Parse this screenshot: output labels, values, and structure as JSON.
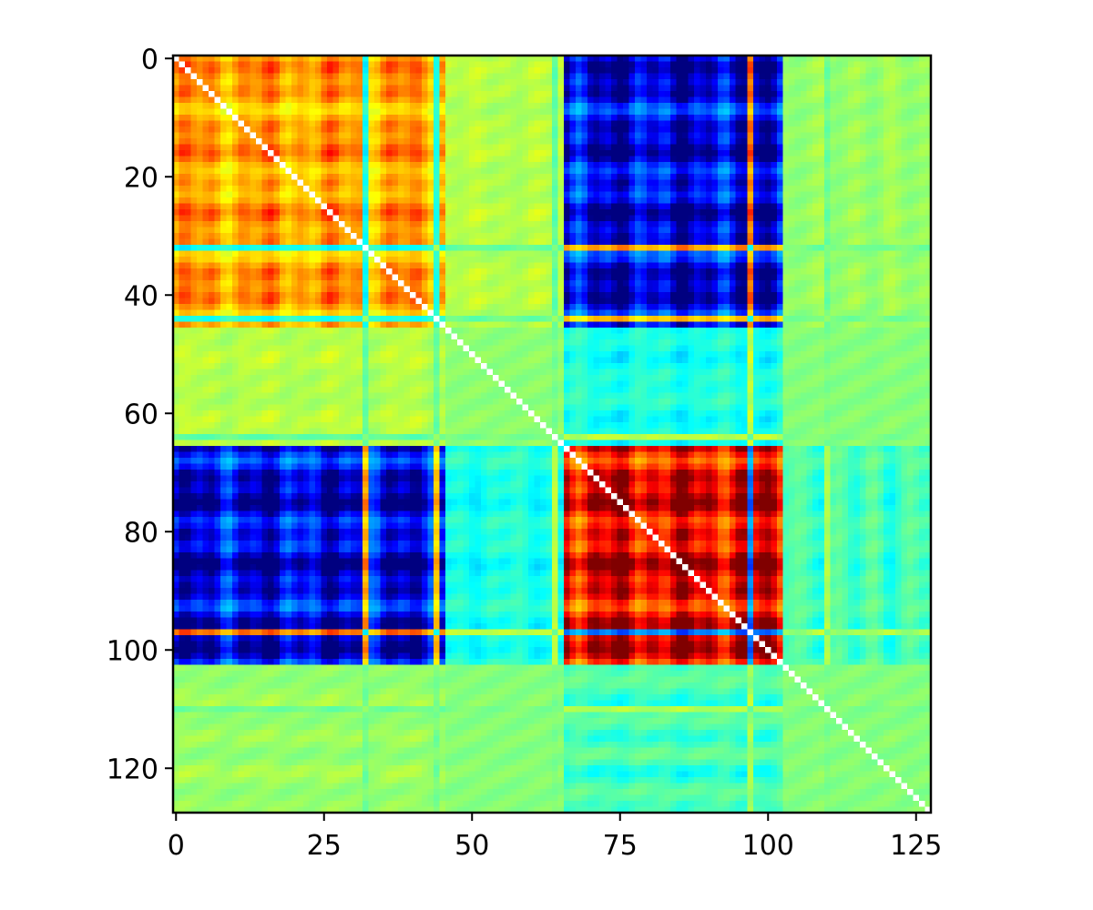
{
  "chart_data": {
    "type": "heatmap",
    "title": "",
    "xlabel": "",
    "ylabel": "",
    "colormap": "jet",
    "size": 128,
    "xlim": [
      -0.5,
      127.5
    ],
    "ylim": [
      127.5,
      -0.5
    ],
    "xticks": [
      0,
      25,
      50,
      75,
      100,
      125
    ],
    "xtick_labels": [
      "0",
      "25",
      "50",
      "75",
      "100",
      "125"
    ],
    "yticks": [
      0,
      20,
      40,
      60,
      80,
      100,
      120
    ],
    "ytick_labels": [
      "0",
      "20",
      "40",
      "60",
      "80",
      "100",
      "120"
    ],
    "diagonal_color": "#ffffff",
    "cluster_boundaries": [
      0,
      66,
      103,
      128
    ],
    "value_range": [
      -1,
      1
    ],
    "block_values": {
      "within_first_cluster": 0.45,
      "within_second_cluster": 0.85,
      "between_clusters": -0.85,
      "neutral_region": 0.05
    },
    "bright_stripe_rows": [
      32,
      44,
      64,
      97,
      110
    ],
    "grid": false,
    "colorbar": false
  }
}
